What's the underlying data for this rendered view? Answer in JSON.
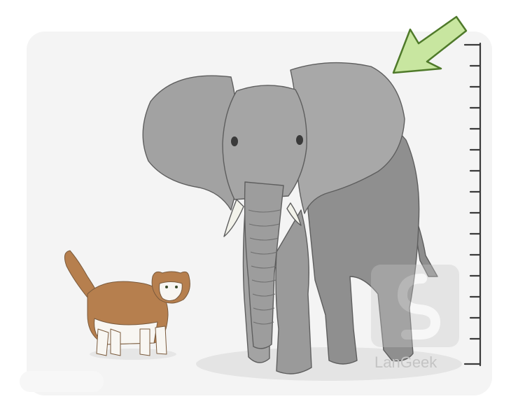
{
  "watermark": {
    "logo_text": "LanGeek"
  },
  "colors": {
    "background": "#ffffff",
    "card": "#f4f4f4",
    "elephant_body": "#9c9c9c",
    "elephant_dark": "#7f7f7f",
    "elephant_light": "#b5b5b5",
    "tusk": "#f2f2ea",
    "cat_orange": "#b67f4e",
    "cat_white": "#f8f6f2",
    "arrow_fill": "#c8e6a0",
    "arrow_stroke": "#4f7a2a",
    "ruler": "#3a3a3a"
  },
  "icons": {
    "arrow": "arrow-down-left-icon",
    "ruler": "height-ruler-icon",
    "logo": "langeek-logo-icon"
  }
}
